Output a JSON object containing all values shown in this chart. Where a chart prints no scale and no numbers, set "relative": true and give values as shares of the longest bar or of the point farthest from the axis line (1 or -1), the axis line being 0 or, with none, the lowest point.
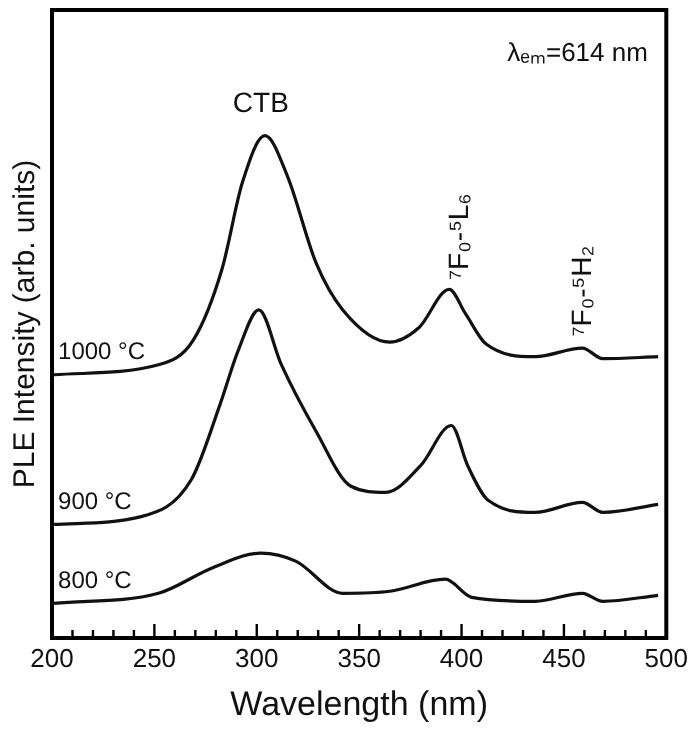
{
  "chart_data": {
    "type": "line",
    "relative": true,
    "xlabel": "Wavelength (nm)",
    "ylabel": "PLE Intensity (arb. units)",
    "xlim": [
      200,
      500
    ],
    "xticks": [
      200,
      {
        "value": 210,
        "label": null
      },
      {
        "value": 220,
        "label": null
      },
      {
        "value": 230,
        "label": null
      },
      {
        "value": 240,
        "label": null
      },
      250,
      {
        "value": 260,
        "label": null
      },
      {
        "value": 270,
        "label": null
      },
      {
        "value": 280,
        "label": null
      },
      {
        "value": 290,
        "label": null
      },
      300,
      {
        "value": 310,
        "label": null
      },
      {
        "value": 320,
        "label": null
      },
      {
        "value": 330,
        "label": null
      },
      {
        "value": 340,
        "label": null
      },
      350,
      {
        "value": 360,
        "label": null
      },
      {
        "value": 370,
        "label": null
      },
      {
        "value": 380,
        "label": null
      },
      {
        "value": 390,
        "label": null
      },
      400,
      {
        "value": 410,
        "label": null
      },
      {
        "value": 420,
        "label": null
      },
      {
        "value": 430,
        "label": null
      },
      {
        "value": 440,
        "label": null
      },
      450,
      {
        "value": 460,
        "label": null
      },
      {
        "value": 470,
        "label": null
      },
      {
        "value": 480,
        "label": null
      },
      {
        "value": 490,
        "label": null
      },
      500
    ],
    "grid": false,
    "legend": false,
    "marker": "none",
    "line_style": "solid",
    "annotations": [
      "λₑₘ=614 nm",
      "CTB",
      "⁷F₀-⁵L₆",
      "⁷F₀-⁵H₂"
    ],
    "series": [
      {
        "name": "1000 °C",
        "color": "#111111",
        "x": [
          201,
          252,
          269,
          283,
          293,
          304,
          315,
          329,
          342,
          365,
          379,
          394,
          402,
          412,
          436,
          459,
          469,
          496
        ],
        "values": [
          0.524,
          0.544,
          0.593,
          0.734,
          0.907,
          1.0,
          0.919,
          0.746,
          0.653,
          0.589,
          0.617,
          0.694,
          0.645,
          0.585,
          0.56,
          0.577,
          0.556,
          0.56
        ]
      },
      {
        "name": "900 °C",
        "color": "#111111",
        "x": [
          201,
          244,
          268,
          282,
          291,
          301,
          312,
          329,
          346,
          363,
          380,
          395,
          403,
          413,
          436,
          459,
          469,
          496
        ],
        "values": [
          0.226,
          0.242,
          0.315,
          0.464,
          0.573,
          0.653,
          0.544,
          0.411,
          0.302,
          0.29,
          0.343,
          0.423,
          0.343,
          0.274,
          0.25,
          0.27,
          0.25,
          0.266
        ]
      },
      {
        "name": "800 °C",
        "color": "#111111",
        "x": [
          201,
          252,
          279,
          302,
          319,
          342,
          365,
          392,
          405,
          436,
          459,
          469,
          496
        ],
        "values": [
          0.069,
          0.089,
          0.141,
          0.169,
          0.153,
          0.089,
          0.093,
          0.117,
          0.081,
          0.073,
          0.089,
          0.073,
          0.085
        ]
      }
    ]
  }
}
